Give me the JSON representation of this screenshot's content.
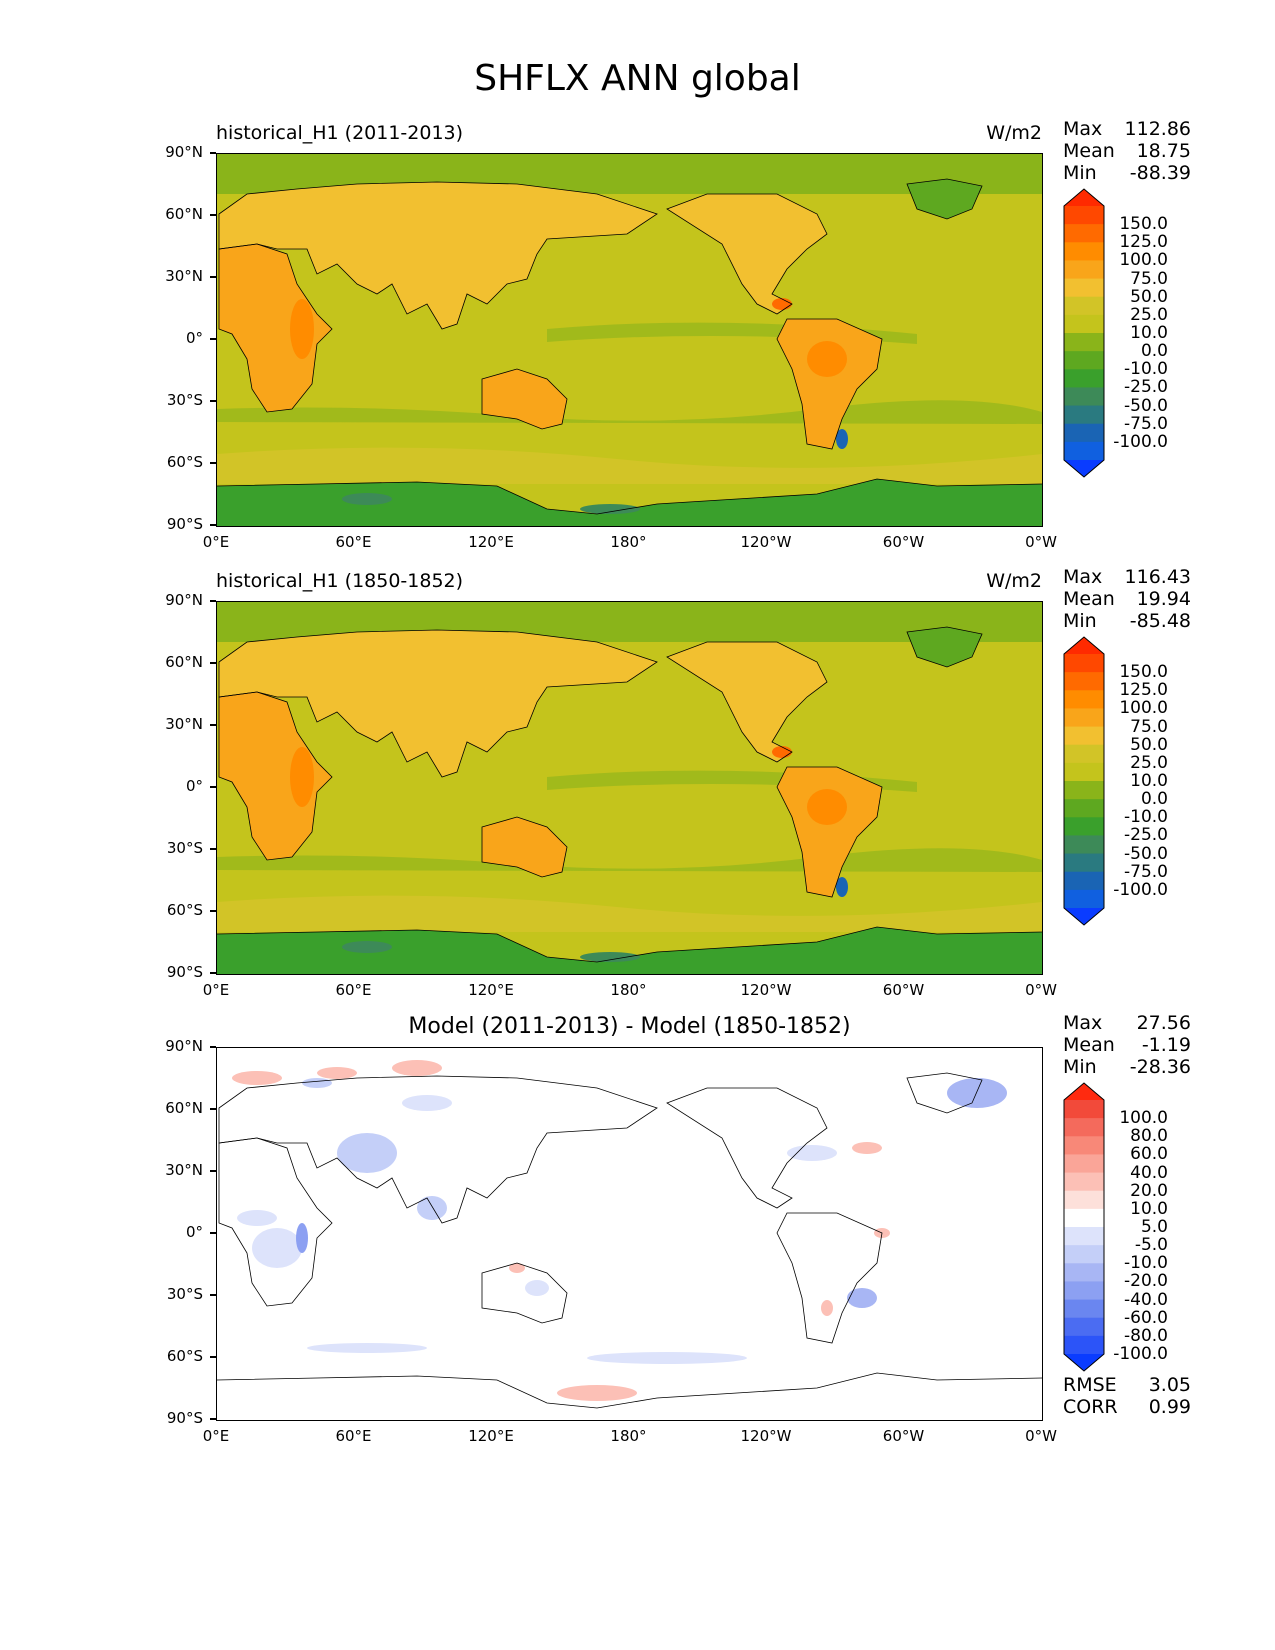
{
  "title": "SHFLX ANN global",
  "yticks": [
    "90°N",
    "60°N",
    "30°N",
    "0°",
    "30°S",
    "60°S",
    "90°S"
  ],
  "xticks": [
    "0°E",
    "60°E",
    "120°E",
    "180°",
    "120°W",
    "60°W",
    "0°W"
  ],
  "panels": [
    {
      "title": "historical_H1 (2011-2013)",
      "units": "W/m2",
      "stats": {
        "max_label": "Max",
        "max": "112.86",
        "mean_label": "Mean",
        "mean": "18.75",
        "min_label": "Min",
        "min": "-88.39"
      },
      "colorbar": {
        "levels": [
          "150.0",
          "125.0",
          "100.0",
          "75.0",
          "50.0",
          "25.0",
          "10.0",
          "0.0",
          "-10.0",
          "-25.0",
          "-50.0",
          "-75.0",
          "-100.0"
        ],
        "colors": [
          "#ff2a00",
          "#ff4800",
          "#ff6a00",
          "#ff8c00",
          "#f9a51a",
          "#f2c030",
          "#d2c427",
          "#c4c41c",
          "#8ab41a",
          "#5ea820",
          "#3aa02c",
          "#3d8a58",
          "#2a7a80",
          "#1a64b4",
          "#1060e0",
          "#0a3cff"
        ]
      },
      "field": "full"
    },
    {
      "title": "historical_H1 (1850-1852)",
      "units": "W/m2",
      "stats": {
        "max_label": "Max",
        "max": "116.43",
        "mean_label": "Mean",
        "mean": "19.94",
        "min_label": "Min",
        "min": "-85.48"
      },
      "colorbar": {
        "levels": [
          "150.0",
          "125.0",
          "100.0",
          "75.0",
          "50.0",
          "25.0",
          "10.0",
          "0.0",
          "-10.0",
          "-25.0",
          "-50.0",
          "-75.0",
          "-100.0"
        ],
        "colors": [
          "#ff2a00",
          "#ff4800",
          "#ff6a00",
          "#ff8c00",
          "#f9a51a",
          "#f2c030",
          "#d2c427",
          "#c4c41c",
          "#8ab41a",
          "#5ea820",
          "#3aa02c",
          "#3d8a58",
          "#2a7a80",
          "#1a64b4",
          "#1060e0",
          "#0a3cff"
        ]
      },
      "field": "full"
    },
    {
      "title": "Model (2011-2013) - Model (1850-1852)",
      "units": "",
      "stats": {
        "max_label": "Max",
        "max": "27.56",
        "mean_label": "Mean",
        "mean": "-1.19",
        "min_label": "Min",
        "min": "-28.36"
      },
      "colorbar": {
        "levels": [
          "100.0",
          "80.0",
          "60.0",
          "40.0",
          "20.0",
          "10.0",
          "5.0",
          "-5.0",
          "-10.0",
          "-20.0",
          "-40.0",
          "-60.0",
          "-80.0",
          "-100.0"
        ],
        "colors": [
          "#ff2a0f",
          "#f24a3a",
          "#f46a5c",
          "#f88878",
          "#faa598",
          "#fcc0b6",
          "#fde0da",
          "#ffffff",
          "#dde3fb",
          "#c4cff8",
          "#a8b6f4",
          "#8ca0f2",
          "#6a86f0",
          "#4b6cf2",
          "#2c54f8",
          "#0a3cff"
        ]
      },
      "field": "diff",
      "extra_stats": {
        "rmse_label": "RMSE",
        "rmse": "3.05",
        "corr_label": "CORR",
        "corr": "0.99"
      }
    }
  ]
}
